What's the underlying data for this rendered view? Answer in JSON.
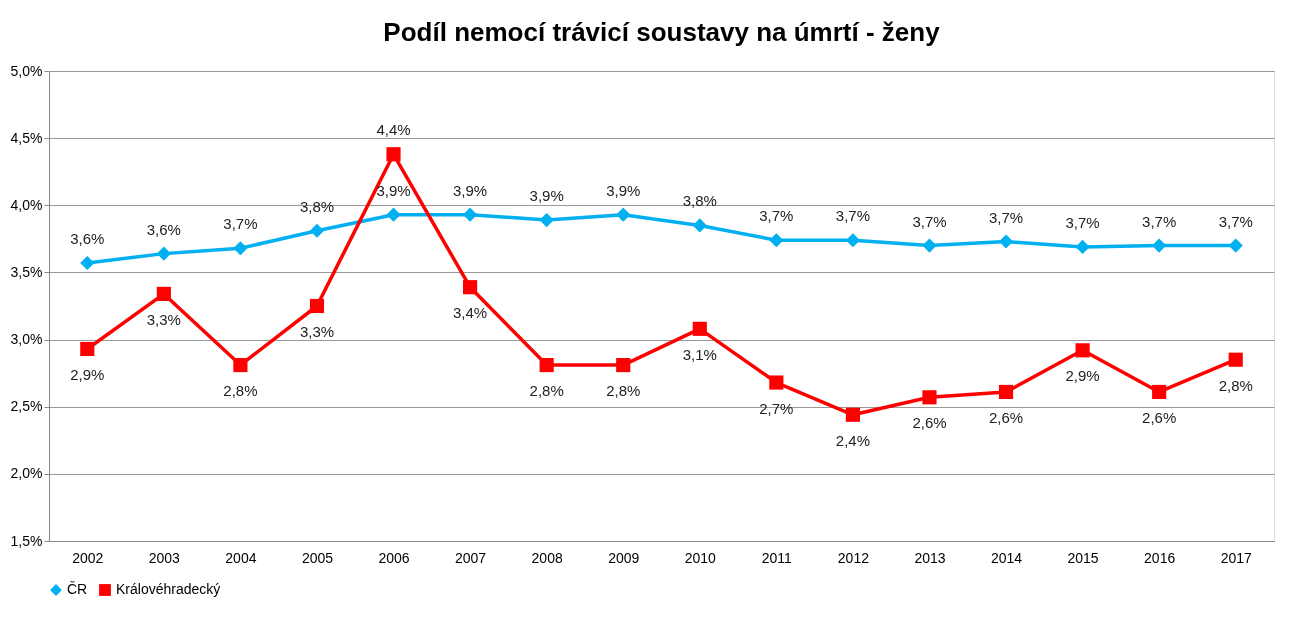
{
  "chart_data": {
    "type": "line",
    "title": "Podíl nemocí trávicí soustavy na úmrtí - ženy",
    "categories": [
      "2002",
      "2003",
      "2004",
      "2005",
      "2006",
      "2007",
      "2008",
      "2009",
      "2010",
      "2011",
      "2012",
      "2013",
      "2014",
      "2015",
      "2016",
      "2017"
    ],
    "series": [
      {
        "name": "ČR",
        "color": "#00b0f0",
        "marker": "diamond",
        "values": [
          3.57,
          3.64,
          3.68,
          3.81,
          3.93,
          3.93,
          3.89,
          3.93,
          3.85,
          3.74,
          3.74,
          3.7,
          3.73,
          3.69,
          3.7,
          3.7
        ],
        "value_labels": [
          "3,6%",
          "3,6%",
          "3,7%",
          "3,8%",
          "3,9%",
          "3,9%",
          "3,9%",
          "3,9%",
          "3,8%",
          "3,7%",
          "3,7%",
          "3,7%",
          "3,7%",
          "3,7%",
          "3,7%",
          "3,7%"
        ]
      },
      {
        "name": "Královéhradecký",
        "color": "#ff0000",
        "marker": "square",
        "values": [
          2.93,
          3.34,
          2.81,
          3.25,
          4.38,
          3.39,
          2.81,
          2.81,
          3.08,
          2.68,
          2.44,
          2.57,
          2.61,
          2.92,
          2.61,
          2.85
        ],
        "value_labels": [
          "2,9%",
          "3,3%",
          "2,8%",
          "3,3%",
          "4,4%",
          "3,4%",
          "2,8%",
          "2,8%",
          "3,1%",
          "2,7%",
          "2,4%",
          "2,6%",
          "2,6%",
          "2,9%",
          "2,6%",
          "2,8%"
        ]
      }
    ],
    "ylim": [
      1.5,
      5.0
    ],
    "yticks": [
      {
        "value": 1.5,
        "label": "1,5%"
      },
      {
        "value": 2.0,
        "label": "2,0%"
      },
      {
        "value": 2.5,
        "label": "2,5%"
      },
      {
        "value": 3.0,
        "label": "3,0%"
      },
      {
        "value": 3.5,
        "label": "3,5%"
      },
      {
        "value": 4.0,
        "label": "4,0%"
      },
      {
        "value": 4.5,
        "label": "4,5%"
      },
      {
        "value": 5.0,
        "label": "5,0%"
      }
    ],
    "grid": "y",
    "legend": "bottom",
    "line_style": "solid"
  }
}
